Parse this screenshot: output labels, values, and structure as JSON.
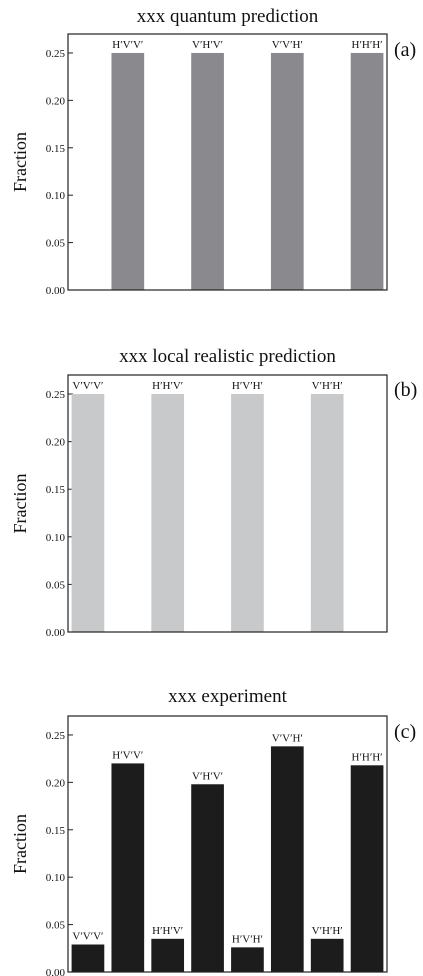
{
  "chart_data": [
    {
      "type": "bar",
      "title": "xxx quantum prediction",
      "panel_label": "(a)",
      "ylabel": "Fraction",
      "ylim": [
        0,
        0.27
      ],
      "yticks": [
        "0.00",
        "0.05",
        "0.10",
        "0.15",
        "0.20",
        "0.25"
      ],
      "categories": [
        "",
        "H′V′V′",
        "",
        "V′H′V′",
        "",
        "V′V′H′",
        "",
        "H′H′H′"
      ],
      "values": [
        0,
        0.25,
        0,
        0.25,
        0,
        0.25,
        0,
        0.25
      ],
      "bar_color": "#8a8a8e"
    },
    {
      "type": "bar",
      "title": "xxx local realistic prediction",
      "panel_label": "(b)",
      "ylabel": "Fraction",
      "ylim": [
        0,
        0.27
      ],
      "yticks": [
        "0.00",
        "0.05",
        "0.10",
        "0.15",
        "0.20",
        "0.25"
      ],
      "categories": [
        "V′V′V′",
        "",
        "H′H′V′",
        "",
        "H′V′H′",
        "",
        "V′H′H′",
        ""
      ],
      "values": [
        0.25,
        0,
        0.25,
        0,
        0.25,
        0,
        0.25,
        0
      ],
      "bar_color": "#c8c9cb"
    },
    {
      "type": "bar",
      "title": "xxx experiment",
      "panel_label": "(c)",
      "ylabel": "Fraction",
      "ylim": [
        0,
        0.27
      ],
      "yticks": [
        "0.00",
        "0.05",
        "0.10",
        "0.15",
        "0.20",
        "0.25"
      ],
      "categories": [
        "V′V′V′",
        "H′V′V′",
        "H′H′V′",
        "V′H′V′",
        "H′V′H′",
        "V′V′H′",
        "V′H′H′",
        "H′H′H′"
      ],
      "values": [
        0.029,
        0.22,
        0.035,
        0.198,
        0.026,
        0.238,
        0.035,
        0.218
      ],
      "bar_color": "#1c1c1c"
    }
  ]
}
